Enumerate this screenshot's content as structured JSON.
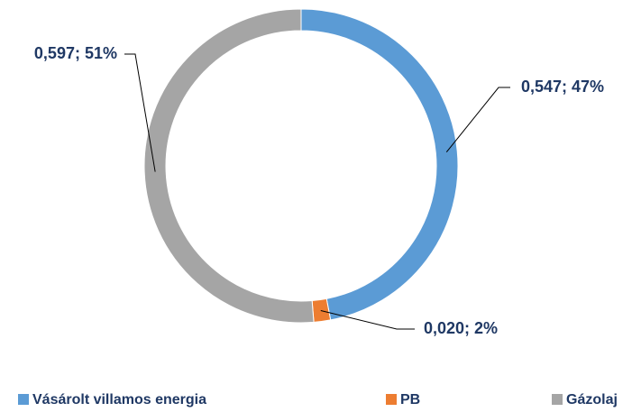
{
  "chart_data": {
    "type": "donut",
    "categories": [
      "Vásárolt villamos energia",
      "PB",
      "Gázolaj"
    ],
    "values": [
      0.547,
      0.02,
      0.597
    ],
    "value_labels": [
      "0,547; 47%",
      "0,020; 2%",
      "0,597; 51%"
    ],
    "colors": [
      "#5b9bd5",
      "#ed7d31",
      "#a5a5a5"
    ],
    "legend": "bottom"
  }
}
